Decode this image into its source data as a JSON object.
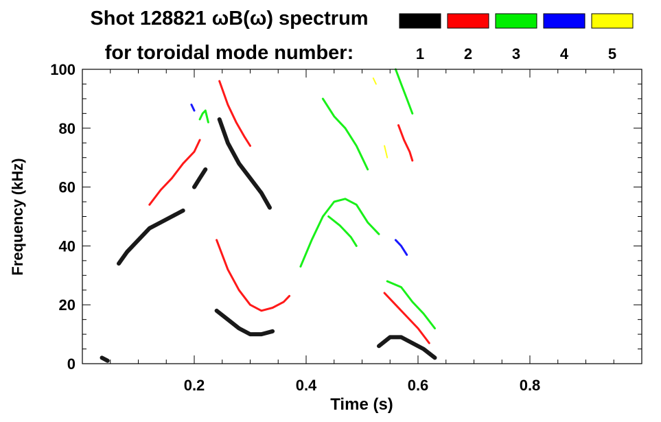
{
  "chart_data": {
    "type": "heatmap",
    "title": "Shot 128821 ωB(ω) spectrum",
    "subtitle": "for toroidal mode number:",
    "xlabel": "Time (s)",
    "ylabel": "Frequency (kHz)",
    "xlim": [
      0.0,
      1.0
    ],
    "ylim": [
      0,
      100
    ],
    "xticks": [
      0.2,
      0.4,
      0.6,
      0.8
    ],
    "xtick_labels": [
      "0.2",
      "0.4",
      "0.6",
      "0.8"
    ],
    "yticks": [
      0,
      20,
      40,
      60,
      80,
      100
    ],
    "ytick_labels": [
      "0",
      "20",
      "40",
      "60",
      "80",
      "100"
    ],
    "legend": [
      {
        "label": "1",
        "color": "#000000"
      },
      {
        "label": "2",
        "color": "#ff0000"
      },
      {
        "label": "3",
        "color": "#00ee00"
      },
      {
        "label": "4",
        "color": "#0000ff"
      },
      {
        "label": "5",
        "color": "#ffff00"
      }
    ],
    "series": [
      {
        "name": "n=1",
        "color": "#000000",
        "width": 6,
        "segments": [
          [
            [
              0.065,
              34
            ],
            [
              0.08,
              38
            ],
            [
              0.1,
              42
            ],
            [
              0.12,
              46
            ],
            [
              0.14,
              48
            ],
            [
              0.16,
              50
            ],
            [
              0.18,
              52
            ]
          ],
          [
            [
              0.2,
              60
            ],
            [
              0.21,
              63
            ],
            [
              0.22,
              66
            ]
          ],
          [
            [
              0.245,
              83
            ],
            [
              0.26,
              75
            ],
            [
              0.28,
              68
            ],
            [
              0.3,
              63
            ],
            [
              0.32,
              58
            ],
            [
              0.335,
              53
            ]
          ],
          [
            [
              0.24,
              18
            ],
            [
              0.26,
              15
            ],
            [
              0.28,
              12
            ],
            [
              0.3,
              10
            ],
            [
              0.32,
              10
            ],
            [
              0.34,
              11
            ]
          ],
          [
            [
              0.53,
              6
            ],
            [
              0.55,
              9
            ],
            [
              0.57,
              9
            ],
            [
              0.59,
              7
            ],
            [
              0.61,
              5
            ],
            [
              0.63,
              2
            ]
          ],
          [
            [
              0.035,
              2
            ],
            [
              0.045,
              1
            ]
          ]
        ]
      },
      {
        "name": "n=2",
        "color": "#ff0000",
        "width": 3,
        "segments": [
          [
            [
              0.12,
              54
            ],
            [
              0.14,
              59
            ],
            [
              0.16,
              63
            ],
            [
              0.18,
              68
            ],
            [
              0.2,
              72
            ],
            [
              0.21,
              76
            ]
          ],
          [
            [
              0.24,
              42
            ],
            [
              0.26,
              32
            ],
            [
              0.28,
              25
            ],
            [
              0.3,
              20
            ],
            [
              0.32,
              18
            ],
            [
              0.34,
              19
            ],
            [
              0.36,
              21
            ],
            [
              0.37,
              23
            ]
          ],
          [
            [
              0.245,
              96
            ],
            [
              0.26,
              88
            ],
            [
              0.275,
              82
            ],
            [
              0.29,
              77
            ],
            [
              0.3,
              74
            ]
          ],
          [
            [
              0.54,
              24
            ],
            [
              0.56,
              20
            ],
            [
              0.58,
              16
            ],
            [
              0.6,
              12
            ],
            [
              0.62,
              7
            ]
          ],
          [
            [
              0.565,
              81
            ],
            [
              0.575,
              76
            ],
            [
              0.585,
              72
            ],
            [
              0.59,
              69
            ]
          ]
        ]
      },
      {
        "name": "n=3",
        "color": "#00ee00",
        "width": 3,
        "segments": [
          [
            [
              0.21,
              83
            ],
            [
              0.215,
              85
            ],
            [
              0.22,
              86
            ],
            [
              0.225,
              82
            ]
          ],
          [
            [
              0.39,
              33
            ],
            [
              0.41,
              42
            ],
            [
              0.43,
              50
            ],
            [
              0.45,
              55
            ],
            [
              0.47,
              56
            ],
            [
              0.49,
              54
            ],
            [
              0.51,
              48
            ],
            [
              0.53,
              44
            ]
          ],
          [
            [
              0.43,
              90
            ],
            [
              0.45,
              84
            ],
            [
              0.47,
              80
            ],
            [
              0.49,
              74
            ],
            [
              0.5,
              70
            ],
            [
              0.51,
              66
            ]
          ],
          [
            [
              0.44,
              50
            ],
            [
              0.46,
              47
            ],
            [
              0.48,
              43
            ],
            [
              0.49,
              40
            ]
          ],
          [
            [
              0.545,
              28
            ],
            [
              0.57,
              26
            ],
            [
              0.59,
              21
            ],
            [
              0.61,
              17
            ],
            [
              0.63,
              12
            ]
          ],
          [
            [
              0.56,
              100
            ],
            [
              0.57,
              95
            ],
            [
              0.58,
              90
            ],
            [
              0.59,
              85
            ]
          ]
        ]
      },
      {
        "name": "n=4",
        "color": "#0000ff",
        "width": 3,
        "segments": [
          [
            [
              0.56,
              42
            ],
            [
              0.57,
              40
            ],
            [
              0.58,
              37
            ]
          ],
          [
            [
              0.195,
              88
            ],
            [
              0.2,
              86
            ]
          ]
        ]
      },
      {
        "name": "n=5",
        "color": "#ffff00",
        "width": 2,
        "segments": [
          [
            [
              0.54,
              74
            ],
            [
              0.545,
              70
            ]
          ],
          [
            [
              0.52,
              97
            ],
            [
              0.525,
              95
            ]
          ]
        ]
      }
    ],
    "grid": false,
    "legend_placement": "top"
  }
}
